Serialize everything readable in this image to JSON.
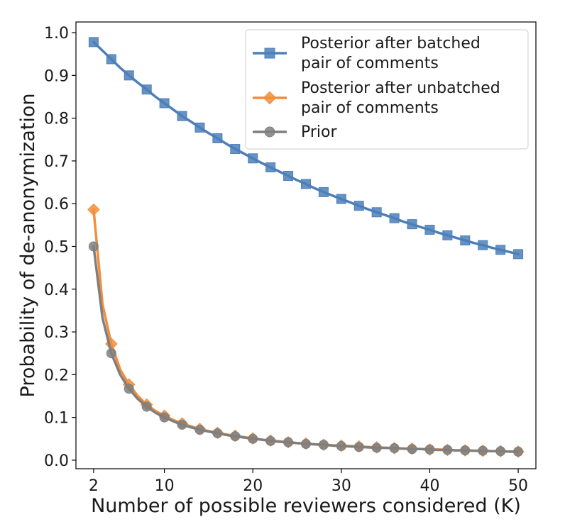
{
  "chart_data": {
    "type": "line",
    "xlabel": "Number of possible reviewers considered (K)",
    "ylabel": "Probability of de-anonymization",
    "xlim": [
      0,
      52
    ],
    "ylim": [
      -0.02,
      1.025
    ],
    "xticks": [
      2,
      10,
      20,
      30,
      40,
      50
    ],
    "yticks": [
      0.0,
      0.1,
      0.2,
      0.3,
      0.4,
      0.5,
      0.6,
      0.7,
      0.8,
      0.9,
      1.0
    ],
    "ytick_labels": [
      "0.0",
      "0.1",
      "0.2",
      "0.3",
      "0.4",
      "0.5",
      "0.6",
      "0.7",
      "0.8",
      "0.9",
      "1.0"
    ],
    "grid": false,
    "legend_position": "top-right",
    "series": [
      {
        "name": "Posterior after batched pair of comments",
        "legend_lines": [
          "Posterior after batched",
          "pair of comments"
        ],
        "color": "#4c7fb8",
        "marker": "square",
        "x": [
          2,
          3,
          4,
          5,
          6,
          7,
          8,
          9,
          10,
          11,
          12,
          13,
          14,
          15,
          16,
          17,
          18,
          19,
          20,
          21,
          22,
          23,
          24,
          25,
          26,
          27,
          28,
          29,
          30,
          31,
          32,
          33,
          34,
          35,
          36,
          37,
          38,
          39,
          40,
          41,
          42,
          43,
          44,
          45,
          46,
          47,
          48,
          49,
          50
        ],
        "y": [
          0.978,
          0.958,
          0.938,
          0.918,
          0.9,
          0.883,
          0.867,
          0.85,
          0.835,
          0.82,
          0.805,
          0.792,
          0.778,
          0.765,
          0.753,
          0.74,
          0.728,
          0.717,
          0.706,
          0.695,
          0.685,
          0.675,
          0.665,
          0.655,
          0.646,
          0.636,
          0.627,
          0.619,
          0.611,
          0.603,
          0.595,
          0.587,
          0.58,
          0.573,
          0.566,
          0.558,
          0.552,
          0.545,
          0.539,
          0.532,
          0.526,
          0.52,
          0.514,
          0.508,
          0.503,
          0.497,
          0.492,
          0.487,
          0.482
        ],
        "marker_every": 2
      },
      {
        "name": "Posterior after unbatched pair of comments",
        "legend_lines": [
          "Posterior after unbatched",
          "pair of comments"
        ],
        "color": "#f28e3b",
        "marker": "diamond",
        "x": [
          2,
          3,
          4,
          5,
          6,
          7,
          8,
          9,
          10,
          11,
          12,
          13,
          14,
          15,
          16,
          17,
          18,
          19,
          20,
          21,
          22,
          23,
          24,
          25,
          26,
          27,
          28,
          29,
          30,
          31,
          32,
          33,
          34,
          35,
          36,
          37,
          38,
          39,
          40,
          41,
          42,
          43,
          44,
          45,
          46,
          47,
          48,
          49,
          50
        ],
        "y": [
          0.586,
          0.365,
          0.272,
          0.212,
          0.177,
          0.15,
          0.13,
          0.115,
          0.104,
          0.094,
          0.086,
          0.079,
          0.073,
          0.068,
          0.064,
          0.06,
          0.057,
          0.054,
          0.051,
          0.048,
          0.046,
          0.044,
          0.042,
          0.04,
          0.039,
          0.037,
          0.036,
          0.035,
          0.034,
          0.033,
          0.032,
          0.031,
          0.03,
          0.029,
          0.028,
          0.027,
          0.027,
          0.026,
          0.025,
          0.025,
          0.024,
          0.023,
          0.023,
          0.022,
          0.022,
          0.021,
          0.021,
          0.02,
          0.02
        ],
        "marker_every": 2
      },
      {
        "name": "Prior",
        "legend_lines": [
          "Prior"
        ],
        "color": "#7f7f7f",
        "marker": "circle",
        "x": [
          2,
          3,
          4,
          5,
          6,
          7,
          8,
          9,
          10,
          11,
          12,
          13,
          14,
          15,
          16,
          17,
          18,
          19,
          20,
          21,
          22,
          23,
          24,
          25,
          26,
          27,
          28,
          29,
          30,
          31,
          32,
          33,
          34,
          35,
          36,
          37,
          38,
          39,
          40,
          41,
          42,
          43,
          44,
          45,
          46,
          47,
          48,
          49,
          50
        ],
        "y": [
          0.5,
          0.333,
          0.25,
          0.2,
          0.167,
          0.143,
          0.125,
          0.111,
          0.1,
          0.091,
          0.083,
          0.077,
          0.071,
          0.067,
          0.063,
          0.059,
          0.056,
          0.053,
          0.05,
          0.048,
          0.045,
          0.043,
          0.042,
          0.04,
          0.038,
          0.037,
          0.036,
          0.034,
          0.033,
          0.032,
          0.031,
          0.03,
          0.029,
          0.029,
          0.028,
          0.027,
          0.026,
          0.026,
          0.025,
          0.024,
          0.024,
          0.023,
          0.023,
          0.022,
          0.022,
          0.021,
          0.021,
          0.02,
          0.02
        ],
        "marker_every": 2
      }
    ]
  }
}
